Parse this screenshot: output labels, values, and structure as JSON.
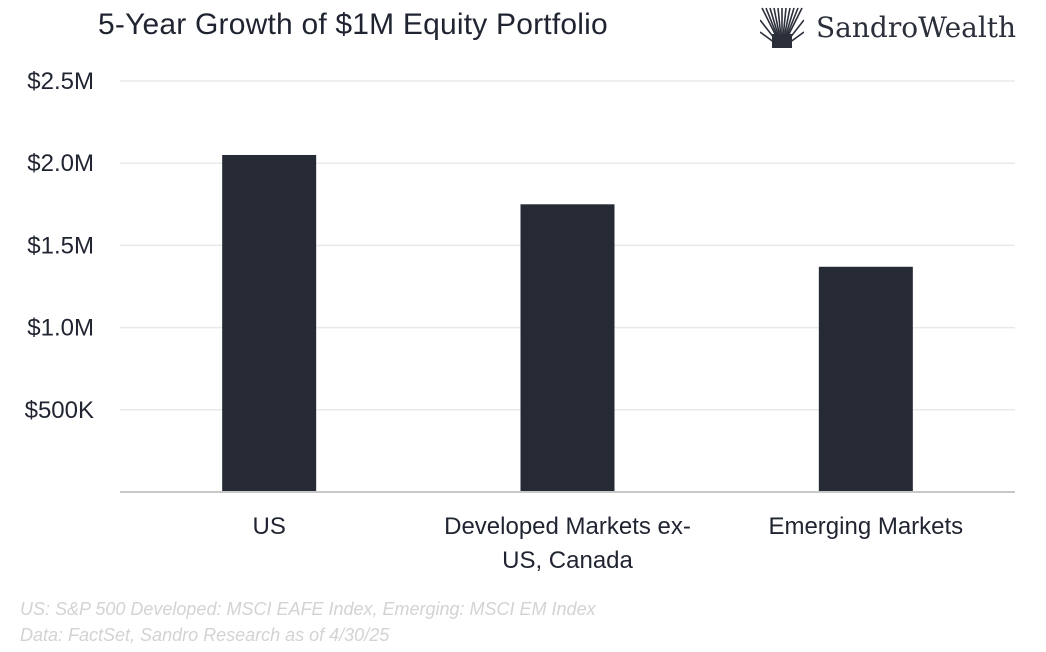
{
  "header": {
    "title": "5-Year Growth of $1M Equity Portfolio",
    "brand": "SandroWealth",
    "brand_icon": "sunburst-logo-icon"
  },
  "chart_data": {
    "type": "bar",
    "title": "5-Year Growth of $1M Equity Portfolio",
    "categories": [
      "US",
      "Developed Markets ex-US, Canada",
      "Emerging Markets"
    ],
    "category_lines": [
      [
        "US"
      ],
      [
        "Developed Markets ex-",
        "US, Canada"
      ],
      [
        "Emerging Markets"
      ]
    ],
    "values": [
      2050000,
      1750000,
      1370000
    ],
    "ylim": [
      0,
      2500000
    ],
    "yticks": [
      500000,
      1000000,
      1500000,
      2000000,
      2500000
    ],
    "ytick_labels": [
      "$500K",
      "$1.0M",
      "$1.5M",
      "$2.0M",
      "$2.5M"
    ],
    "xlabel": "",
    "ylabel": "",
    "grid": true,
    "bar_color": "#262a35"
  },
  "footnotes": [
    "US: S&P 500 Developed: MSCI EAFE Index, Emerging: MSCI EM Index",
    "Data: FactSet, Sandro Research as of 4/30/25"
  ]
}
